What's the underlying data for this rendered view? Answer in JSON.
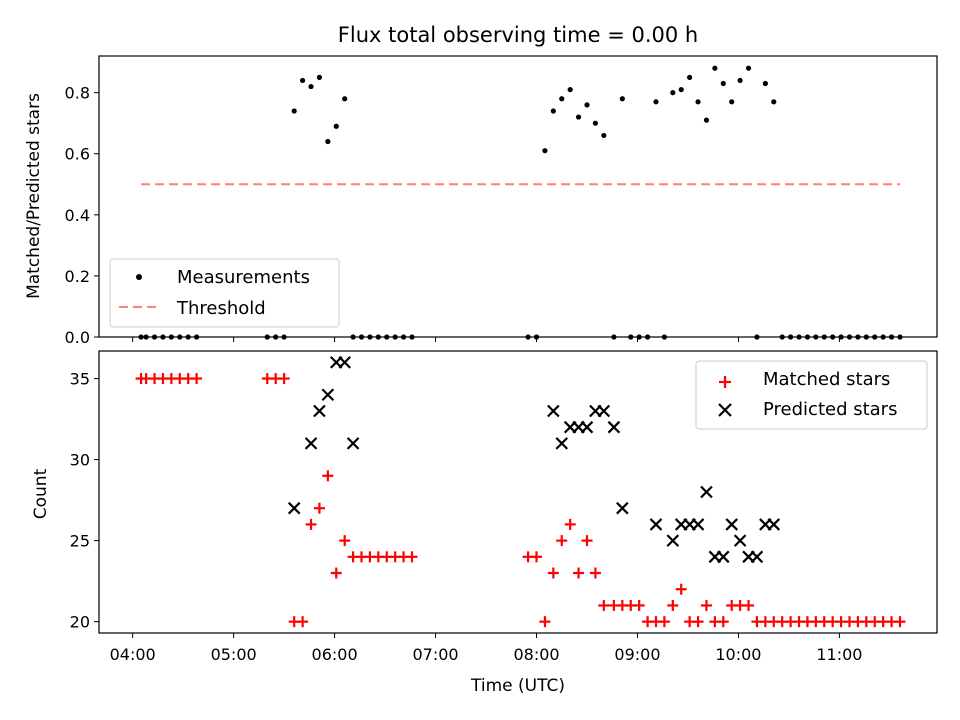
{
  "chart_data": [
    {
      "type": "scatter",
      "title": "Flux total observing time = 0.00 h",
      "xlabel": "",
      "ylabel": "Matched/Predicted stars",
      "xlim": [
        "03:40",
        "11:58"
      ],
      "ylim": [
        0.0,
        0.92
      ],
      "yticks": [
        0.0,
        0.2,
        0.4,
        0.6,
        0.8
      ],
      "grid": false,
      "legend": {
        "placement": "lower-left",
        "entries": [
          "Measurements",
          "Threshold"
        ]
      },
      "colors": {
        "measurements": "#000000",
        "threshold": "#ff7f7f"
      },
      "series": [
        {
          "name": "Measurements",
          "marker": "dot",
          "x": [
            "04:05",
            "04:08",
            "04:13",
            "04:18",
            "04:23",
            "04:28",
            "04:33",
            "04:38",
            "05:20",
            "05:25",
            "05:30",
            "05:36",
            "05:41",
            "05:46",
            "05:51",
            "05:56",
            "06:01",
            "06:06",
            "06:11",
            "06:16",
            "06:21",
            "06:26",
            "06:31",
            "06:36",
            "06:41",
            "06:46",
            "07:55",
            "08:00",
            "08:05",
            "08:10",
            "08:15",
            "08:20",
            "08:25",
            "08:30",
            "08:35",
            "08:40",
            "08:46",
            "08:51",
            "08:56",
            "09:01",
            "09:06",
            "09:11",
            "09:16",
            "09:21",
            "09:26",
            "09:31",
            "09:36",
            "09:41",
            "09:46",
            "09:51",
            "09:56",
            "10:01",
            "10:06",
            "10:11",
            "10:16",
            "10:21",
            "10:26",
            "10:31",
            "10:36",
            "10:41",
            "10:46",
            "10:51",
            "10:56",
            "11:01",
            "11:06",
            "11:11",
            "11:16",
            "11:21",
            "11:26",
            "11:31",
            "11:36"
          ],
          "y": [
            0,
            0,
            0,
            0,
            0,
            0,
            0,
            0,
            0,
            0,
            0,
            0.74,
            0.84,
            0.82,
            0.85,
            0.64,
            0.69,
            0.78,
            0,
            0,
            0,
            0,
            0,
            0,
            0,
            0,
            0,
            0,
            0.61,
            0.74,
            0.78,
            0.81,
            0.72,
            0.76,
            0.7,
            0.66,
            0,
            0.78,
            0,
            0,
            0,
            0.77,
            0,
            0.8,
            0.81,
            0.85,
            0.77,
            0.71,
            0.88,
            0.83,
            0.77,
            0.84,
            0.88,
            0,
            0.83,
            0.77,
            0,
            0,
            0,
            0,
            0,
            0,
            0,
            0,
            0,
            0,
            0,
            0,
            0,
            0,
            0
          ]
        },
        {
          "name": "Threshold",
          "style": "dashed",
          "x": [
            "04:05",
            "11:36"
          ],
          "y": [
            0.5,
            0.5
          ]
        }
      ]
    },
    {
      "type": "scatter",
      "title": "",
      "xlabel": "Time (UTC)",
      "ylabel": "Count",
      "xlim": [
        "03:40",
        "11:58"
      ],
      "ylim": [
        19.3,
        36.7
      ],
      "xticks": [
        "04:00",
        "05:00",
        "06:00",
        "07:00",
        "08:00",
        "09:00",
        "10:00",
        "11:00"
      ],
      "yticks": [
        20,
        25,
        30,
        35
      ],
      "grid": false,
      "legend": {
        "placement": "top-right",
        "entries": [
          "Matched stars",
          "Predicted stars"
        ]
      },
      "colors": {
        "matched": "#ff0000",
        "predicted": "#000000"
      },
      "series": [
        {
          "name": "Matched stars",
          "marker": "plus",
          "x": [
            "04:05",
            "04:08",
            "04:13",
            "04:18",
            "04:23",
            "04:28",
            "04:33",
            "04:38",
            "05:20",
            "05:25",
            "05:30",
            "05:36",
            "05:41",
            "05:46",
            "05:51",
            "05:56",
            "06:01",
            "06:06",
            "06:11",
            "06:16",
            "06:21",
            "06:26",
            "06:31",
            "06:36",
            "06:41",
            "06:46",
            "07:55",
            "08:00",
            "08:05",
            "08:10",
            "08:15",
            "08:20",
            "08:25",
            "08:30",
            "08:35",
            "08:40",
            "08:46",
            "08:51",
            "08:56",
            "09:01",
            "09:06",
            "09:11",
            "09:16",
            "09:21",
            "09:26",
            "09:31",
            "09:36",
            "09:41",
            "09:46",
            "09:51",
            "09:56",
            "10:01",
            "10:06",
            "10:11",
            "10:16",
            "10:21",
            "10:26",
            "10:31",
            "10:36",
            "10:41",
            "10:46",
            "10:51",
            "10:56",
            "11:01",
            "11:06",
            "11:11",
            "11:16",
            "11:21",
            "11:26",
            "11:31",
            "11:36"
          ],
          "y": [
            35,
            35,
            35,
            35,
            35,
            35,
            35,
            35,
            35,
            35,
            35,
            20,
            20,
            26,
            27,
            29,
            23,
            25,
            24,
            24,
            24,
            24,
            24,
            24,
            24,
            24,
            24,
            24,
            20,
            23,
            25,
            26,
            23,
            25,
            23,
            21,
            21,
            21,
            21,
            21,
            20,
            20,
            20,
            21,
            22,
            20,
            20,
            21,
            20,
            20,
            21,
            21,
            21,
            20,
            20,
            20,
            20,
            20,
            20,
            20,
            20,
            20,
            20,
            20,
            20,
            20,
            20,
            20,
            20,
            20,
            20
          ]
        },
        {
          "name": "Predicted stars",
          "marker": "x",
          "x": [
            "05:36",
            "05:46",
            "05:51",
            "05:56",
            "06:01",
            "06:06",
            "06:11",
            "08:10",
            "08:15",
            "08:20",
            "08:25",
            "08:30",
            "08:35",
            "08:40",
            "08:46",
            "08:51",
            "09:11",
            "09:21",
            "09:26",
            "09:31",
            "09:36",
            "09:41",
            "09:46",
            "09:51",
            "09:56",
            "10:01",
            "10:06",
            "10:11",
            "10:16",
            "10:21"
          ],
          "y": [
            27,
            31,
            33,
            34,
            36,
            36,
            31,
            33,
            31,
            32,
            32,
            32,
            33,
            33,
            32,
            27,
            26,
            25,
            26,
            26,
            26,
            28,
            24,
            24,
            26,
            25,
            24,
            24,
            26,
            26
          ]
        }
      ]
    }
  ]
}
